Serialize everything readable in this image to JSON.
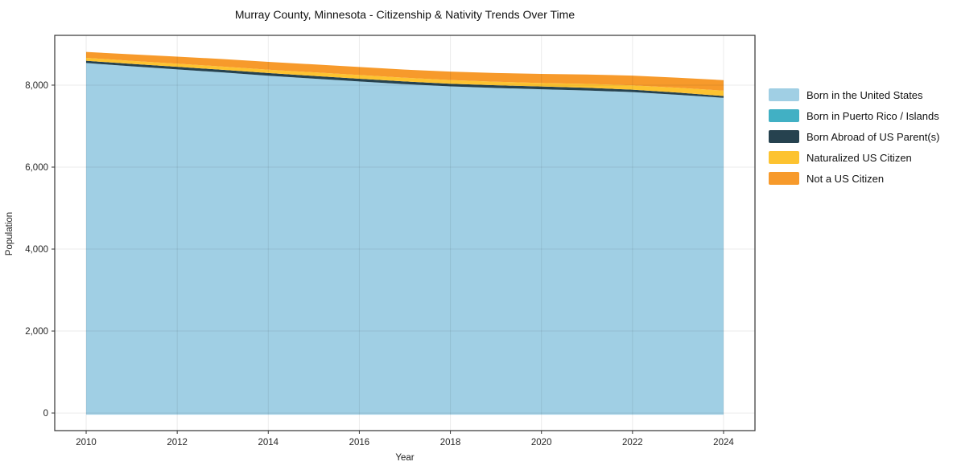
{
  "figure": {
    "background": "#ffffff"
  },
  "chart_data": {
    "type": "area",
    "stacked": true,
    "title": "Murray County, Minnesota - Citizenship & Nativity Trends Over Time",
    "xlabel": "Year",
    "ylabel": "Population",
    "x": [
      2010,
      2011,
      2012,
      2013,
      2014,
      2015,
      2016,
      2017,
      2018,
      2019,
      2020,
      2021,
      2022,
      2023,
      2024
    ],
    "series": [
      {
        "name": "Born in the United States",
        "color": "#a0cfe4",
        "values": [
          8540,
          8460,
          8385,
          8310,
          8230,
          8160,
          8090,
          8025,
          7970,
          7930,
          7900,
          7870,
          7830,
          7765,
          7690
        ]
      },
      {
        "name": "Born in Puerto Rico / Islands",
        "color": "#41b0c4",
        "values": [
          0,
          0,
          0,
          0,
          0,
          0,
          0,
          0,
          0,
          0,
          0,
          0,
          0,
          0,
          0
        ]
      },
      {
        "name": "Born Abroad of US Parent(s)",
        "color": "#26424f",
        "values": [
          55,
          58,
          62,
          64,
          66,
          66,
          66,
          65,
          65,
          66,
          67,
          65,
          60,
          52,
          45
        ]
      },
      {
        "name": "Naturalized US Citizen",
        "color": "#fdc330",
        "values": [
          72,
          75,
          77,
          79,
          82,
          86,
          90,
          92,
          90,
          87,
          85,
          95,
          105,
          118,
          131
        ]
      },
      {
        "name": "Not a US Citizen",
        "color": "#f79a2b",
        "values": [
          144,
          158,
          172,
          183,
          190,
          194,
          196,
          198,
          205,
          213,
          221,
          230,
          238,
          247,
          256
        ]
      }
    ],
    "xticks": [
      2010,
      2012,
      2014,
      2016,
      2018,
      2020,
      2022,
      2024
    ],
    "yticks": [
      0,
      2000,
      4000,
      6000,
      8000
    ],
    "xlim": [
      2009.31,
      2024.69
    ],
    "ylim": [
      -430,
      9215
    ],
    "grid": true,
    "legend_position": "right"
  }
}
